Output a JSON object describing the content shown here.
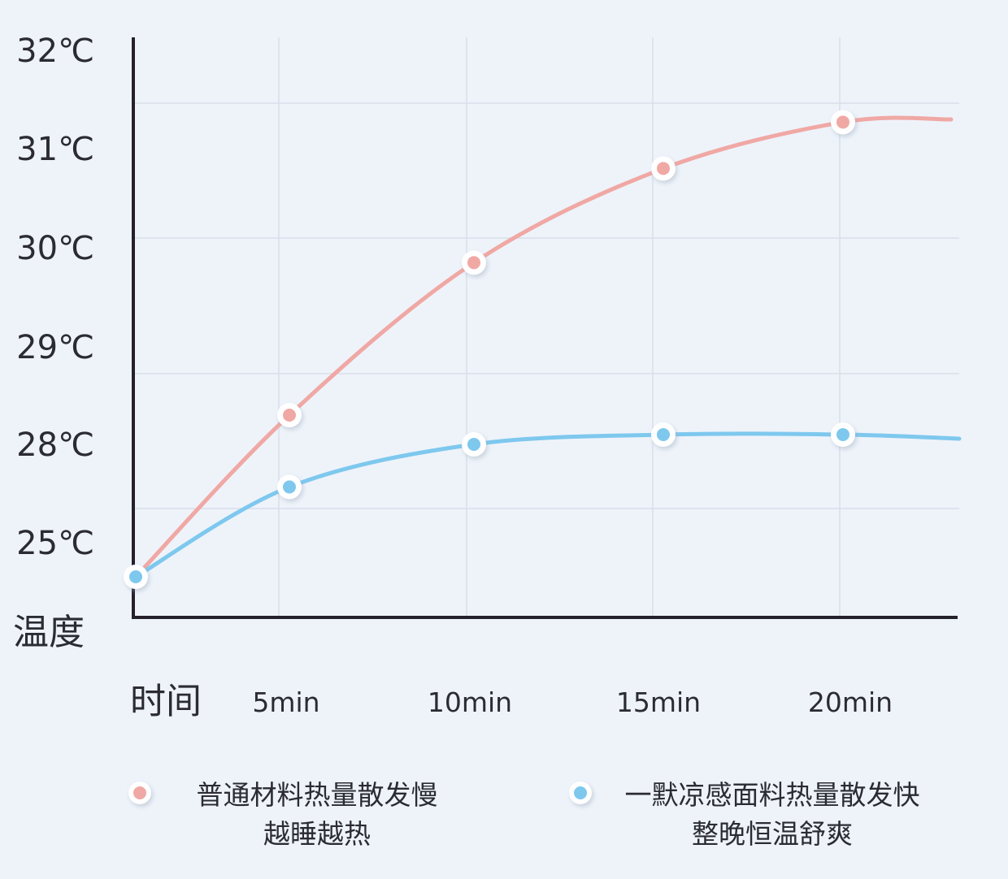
{
  "chart_data": {
    "type": "line",
    "xlabel": "时间",
    "ylabel": "温度",
    "x": [
      0,
      5,
      10,
      15,
      20
    ],
    "x_tick_labels": [
      "5min",
      "10min",
      "15min",
      "20min"
    ],
    "y_ticks": [
      25,
      28,
      29,
      30,
      31,
      32
    ],
    "y_tick_labels": [
      "25℃",
      "28℃",
      "29℃",
      "30℃",
      "31℃",
      "32℃"
    ],
    "grid": true,
    "legend_placement": "bottom",
    "series": [
      {
        "name": "普通材料热量散发慢",
        "sub": "越睡越热",
        "color": "#f0a8a4",
        "values": [
          24.0,
          28.3,
          29.85,
          30.8,
          31.27
        ]
      },
      {
        "name": "一默凉感面料热量散发快",
        "sub": "整晚恒温舒爽",
        "color": "#7ec8ee",
        "values": [
          24.0,
          26.7,
          28.0,
          28.1,
          28.1
        ]
      }
    ]
  }
}
